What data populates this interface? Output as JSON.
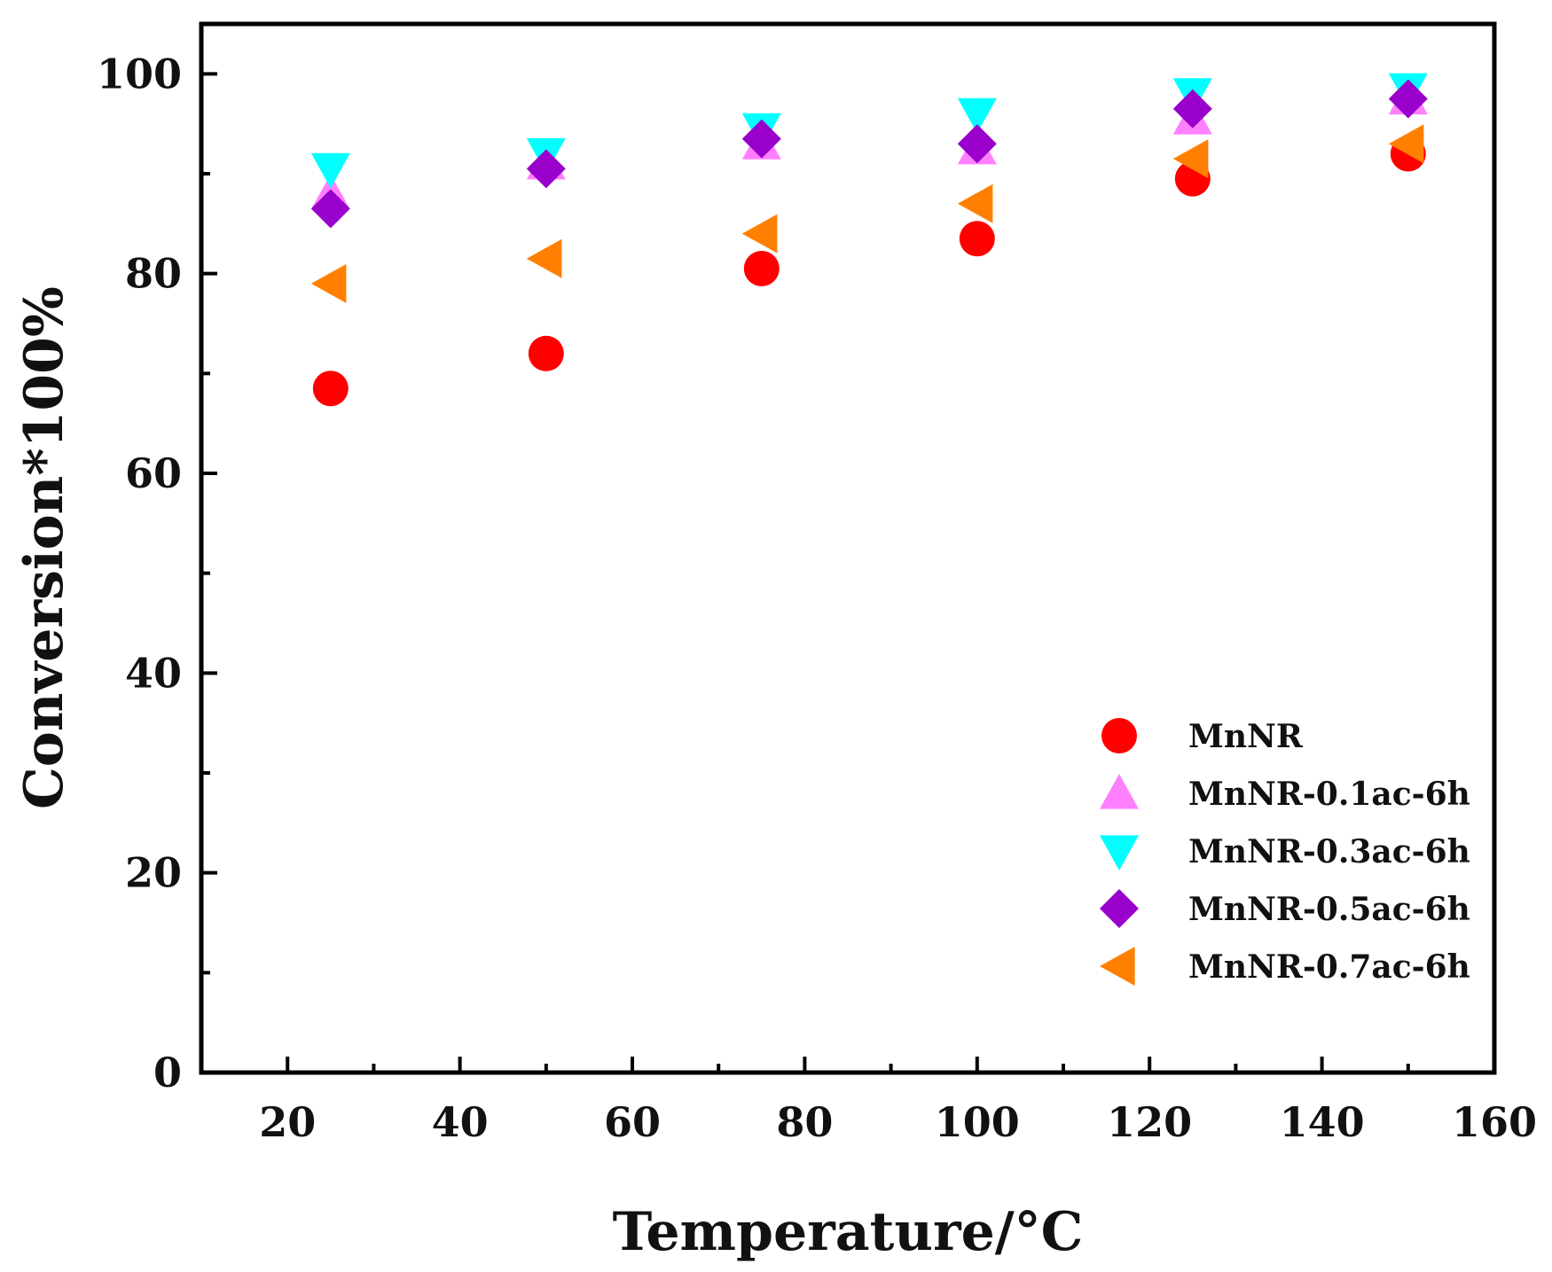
{
  "chart_data": {
    "type": "scatter",
    "title": "",
    "xlabel": "Temperature/°C",
    "ylabel": "Conversion*100%",
    "xlim": [
      10,
      160
    ],
    "ylim": [
      0,
      105
    ],
    "xticks": [
      20,
      40,
      60,
      80,
      100,
      120,
      140,
      160
    ],
    "yticks": [
      0,
      20,
      40,
      60,
      80,
      100
    ],
    "x": [
      25,
      50,
      75,
      100,
      125,
      150
    ],
    "grid": false,
    "legend_position": "bottom-right",
    "series": [
      {
        "name": "MnNR",
        "marker": "circle",
        "color": "#ff0000",
        "values": [
          68.5,
          72,
          80.5,
          83.5,
          89.5,
          92
        ]
      },
      {
        "name": "MnNR-0.1ac-6h",
        "marker": "triangle-up",
        "color": "#ff80ff",
        "values": [
          88,
          91,
          93,
          92.5,
          95.5,
          97.5
        ]
      },
      {
        "name": "MnNR-0.3ac-6h",
        "marker": "triangle-down",
        "color": "#00ffff",
        "values": [
          90.5,
          92,
          94.5,
          96,
          98,
          98.5
        ]
      },
      {
        "name": "MnNR-0.5ac-6h",
        "marker": "diamond",
        "color": "#9900cc",
        "values": [
          86.5,
          90.5,
          93.5,
          93,
          96.5,
          97.5
        ]
      },
      {
        "name": "MnNR-0.7ac-6h",
        "marker": "triangle-left",
        "color": "#ff8000",
        "values": [
          79,
          81.5,
          84,
          87,
          91.5,
          93
        ]
      }
    ]
  }
}
